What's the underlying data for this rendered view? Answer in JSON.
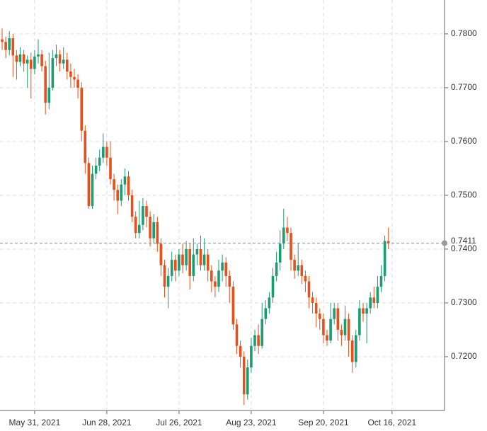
{
  "chart_data": {
    "type": "candlestick",
    "categories": [
      null,
      null,
      null,
      null,
      null,
      null,
      null,
      null,
      null,
      "May 31, 2021",
      null,
      null,
      null,
      null,
      null,
      null,
      null,
      null,
      null,
      null,
      null,
      null,
      null,
      null,
      null,
      null,
      null,
      null,
      null,
      "Jun 28, 2021",
      null,
      null,
      null,
      null,
      null,
      null,
      null,
      null,
      null,
      null,
      null,
      null,
      null,
      null,
      null,
      null,
      null,
      null,
      null,
      "Jul 26, 2021",
      null,
      null,
      null,
      null,
      null,
      null,
      null,
      null,
      null,
      null,
      null,
      null,
      null,
      null,
      null,
      null,
      null,
      null,
      null,
      "Aug 23, 2021",
      null,
      null,
      null,
      null,
      null,
      null,
      null,
      null,
      null,
      null,
      null,
      null,
      null,
      null,
      null,
      null,
      null,
      null,
      null,
      "Sep 20, 2021",
      null,
      null,
      null,
      null,
      null,
      null,
      null,
      null,
      null,
      null,
      null,
      null,
      null,
      null,
      null,
      null,
      null,
      null,
      "Oct 16, 2021"
    ],
    "open": [
      0.779,
      0.7785,
      0.777,
      0.7792,
      0.776,
      0.7748,
      0.7762,
      0.7745,
      0.7752,
      0.7735,
      0.7758,
      0.7762,
      0.774,
      0.7672,
      0.77,
      0.7755,
      0.7762,
      0.7745,
      0.7752,
      0.773,
      0.772,
      0.7715,
      0.77,
      0.762,
      0.756,
      0.748,
      0.754,
      0.7555,
      0.757,
      0.759,
      0.757,
      0.753,
      0.751,
      0.749,
      0.752,
      0.7535,
      0.75,
      0.746,
      0.743,
      0.7445,
      0.748,
      0.746,
      0.742,
      0.745,
      0.741,
      0.737,
      0.733,
      0.735,
      0.738,
      0.736,
      0.739,
      0.737,
      0.74,
      0.735,
      0.739,
      0.74,
      0.737,
      0.739,
      0.736,
      0.734,
      0.733,
      0.736,
      0.7375,
      0.735,
      0.733,
      0.726,
      0.722,
      0.72,
      0.713,
      0.718,
      0.722,
      0.724,
      0.722,
      0.727,
      0.729,
      0.731,
      0.735,
      0.7375,
      0.741,
      0.744,
      0.743,
      0.738,
      0.736,
      0.737,
      0.735,
      0.734,
      0.731,
      0.73,
      0.728,
      0.727,
      0.724,
      0.723,
      0.727,
      0.729,
      0.725,
      0.724,
      0.727,
      0.723,
      0.719,
      0.724,
      0.729,
      0.728,
      0.729,
      0.731,
      0.73,
      0.733,
      0.735,
      0.7415,
      null
    ],
    "high": [
      0.781,
      0.7795,
      0.7805,
      0.78,
      0.777,
      0.7775,
      0.777,
      0.776,
      0.7765,
      0.777,
      0.779,
      0.777,
      0.775,
      0.7765,
      0.777,
      0.778,
      0.777,
      0.7775,
      0.7765,
      0.7745,
      0.7735,
      0.7725,
      0.771,
      0.763,
      0.757,
      0.7555,
      0.757,
      0.7585,
      0.7615,
      0.76,
      0.76,
      0.754,
      0.752,
      0.753,
      0.755,
      0.7545,
      0.751,
      0.747,
      0.749,
      0.7495,
      0.749,
      0.747,
      0.7465,
      0.746,
      0.742,
      0.738,
      0.7365,
      0.7395,
      0.739,
      0.74,
      0.741,
      0.7415,
      0.741,
      0.742,
      0.741,
      0.7425,
      0.742,
      0.74,
      0.737,
      0.735,
      0.738,
      0.739,
      0.7385,
      0.736,
      0.734,
      0.727,
      0.723,
      0.721,
      0.7195,
      0.7235,
      0.725,
      0.726,
      0.73,
      0.7305,
      0.732,
      0.7365,
      0.7395,
      0.7435,
      0.7475,
      0.746,
      0.744,
      0.739,
      0.741,
      0.738,
      0.736,
      0.735,
      0.732,
      0.731,
      0.729,
      0.728,
      0.725,
      0.73,
      0.73,
      0.73,
      0.726,
      0.7295,
      0.728,
      0.724,
      0.725,
      0.7305,
      0.73,
      0.73,
      0.732,
      0.733,
      0.735,
      0.737,
      0.7425,
      0.744,
      null
    ],
    "low": [
      0.777,
      0.7755,
      0.776,
      0.772,
      0.7715,
      0.774,
      0.773,
      0.77,
      0.768,
      0.7725,
      0.7745,
      0.773,
      0.765,
      0.766,
      0.7695,
      0.774,
      0.773,
      0.7735,
      0.7715,
      0.77,
      0.77,
      0.768,
      0.76,
      0.754,
      0.7475,
      0.7475,
      0.753,
      0.7545,
      0.756,
      0.7555,
      0.752,
      0.749,
      0.7465,
      0.748,
      0.75,
      0.749,
      0.745,
      0.742,
      0.742,
      0.7435,
      0.744,
      0.7405,
      0.741,
      0.7395,
      0.735,
      0.731,
      0.729,
      0.734,
      0.734,
      0.735,
      0.7355,
      0.736,
      0.7325,
      0.734,
      0.737,
      0.736,
      0.736,
      0.734,
      0.732,
      0.731,
      0.732,
      0.734,
      0.733,
      0.73,
      0.725,
      0.7205,
      0.718,
      0.711,
      0.712,
      0.717,
      0.721,
      0.7205,
      0.7215,
      0.726,
      0.728,
      0.73,
      0.734,
      0.736,
      0.74,
      0.7415,
      0.736,
      0.7345,
      0.735,
      0.7335,
      0.732,
      0.729,
      0.728,
      0.7255,
      0.725,
      0.7225,
      0.722,
      0.7225,
      0.726,
      0.723,
      0.722,
      0.723,
      0.72,
      0.717,
      0.718,
      0.723,
      0.7265,
      0.7225,
      0.728,
      0.729,
      0.729,
      0.732,
      0.734,
      0.74,
      null
    ],
    "close": [
      0.7785,
      0.777,
      0.7792,
      0.776,
      0.7748,
      0.7762,
      0.7745,
      0.7752,
      0.7735,
      0.7758,
      0.7762,
      0.774,
      0.7672,
      0.77,
      0.7755,
      0.7762,
      0.7745,
      0.7752,
      0.773,
      0.772,
      0.7715,
      0.77,
      0.762,
      0.756,
      0.748,
      0.754,
      0.7555,
      0.757,
      0.759,
      0.757,
      0.753,
      0.751,
      0.749,
      0.752,
      0.7535,
      0.75,
      0.746,
      0.743,
      0.7445,
      0.748,
      0.746,
      0.742,
      0.745,
      0.741,
      0.737,
      0.733,
      0.735,
      0.738,
      0.736,
      0.739,
      0.737,
      0.74,
      0.735,
      0.739,
      0.74,
      0.737,
      0.739,
      0.736,
      0.734,
      0.733,
      0.736,
      0.7375,
      0.735,
      0.733,
      0.726,
      0.722,
      0.72,
      0.713,
      0.718,
      0.722,
      0.724,
      0.722,
      0.727,
      0.729,
      0.731,
      0.735,
      0.7375,
      0.741,
      0.744,
      0.743,
      0.738,
      0.736,
      0.737,
      0.735,
      0.734,
      0.731,
      0.73,
      0.728,
      0.727,
      0.724,
      0.723,
      0.727,
      0.729,
      0.725,
      0.724,
      0.727,
      0.723,
      0.719,
      0.724,
      0.729,
      0.728,
      0.729,
      0.731,
      0.73,
      0.733,
      0.735,
      0.7415,
      0.7411,
      null
    ],
    "up_color": "#1d9c70",
    "down_color": "#e5501b",
    "ylim": [
      0.71,
      0.7863
    ],
    "yticks": [
      {
        "value": 0.72,
        "label": "0.7200"
      },
      {
        "value": 0.73,
        "label": "0.7300"
      },
      {
        "value": 0.74,
        "label": "0.7400"
      },
      {
        "value": 0.75,
        "label": "0.7500"
      },
      {
        "value": 0.76,
        "label": "0.7600"
      },
      {
        "value": 0.77,
        "label": "0.7700"
      },
      {
        "value": 0.78,
        "label": "0.7800"
      }
    ],
    "current_price": {
      "value": 0.7411,
      "label": "0.7411"
    },
    "grid": true
  }
}
